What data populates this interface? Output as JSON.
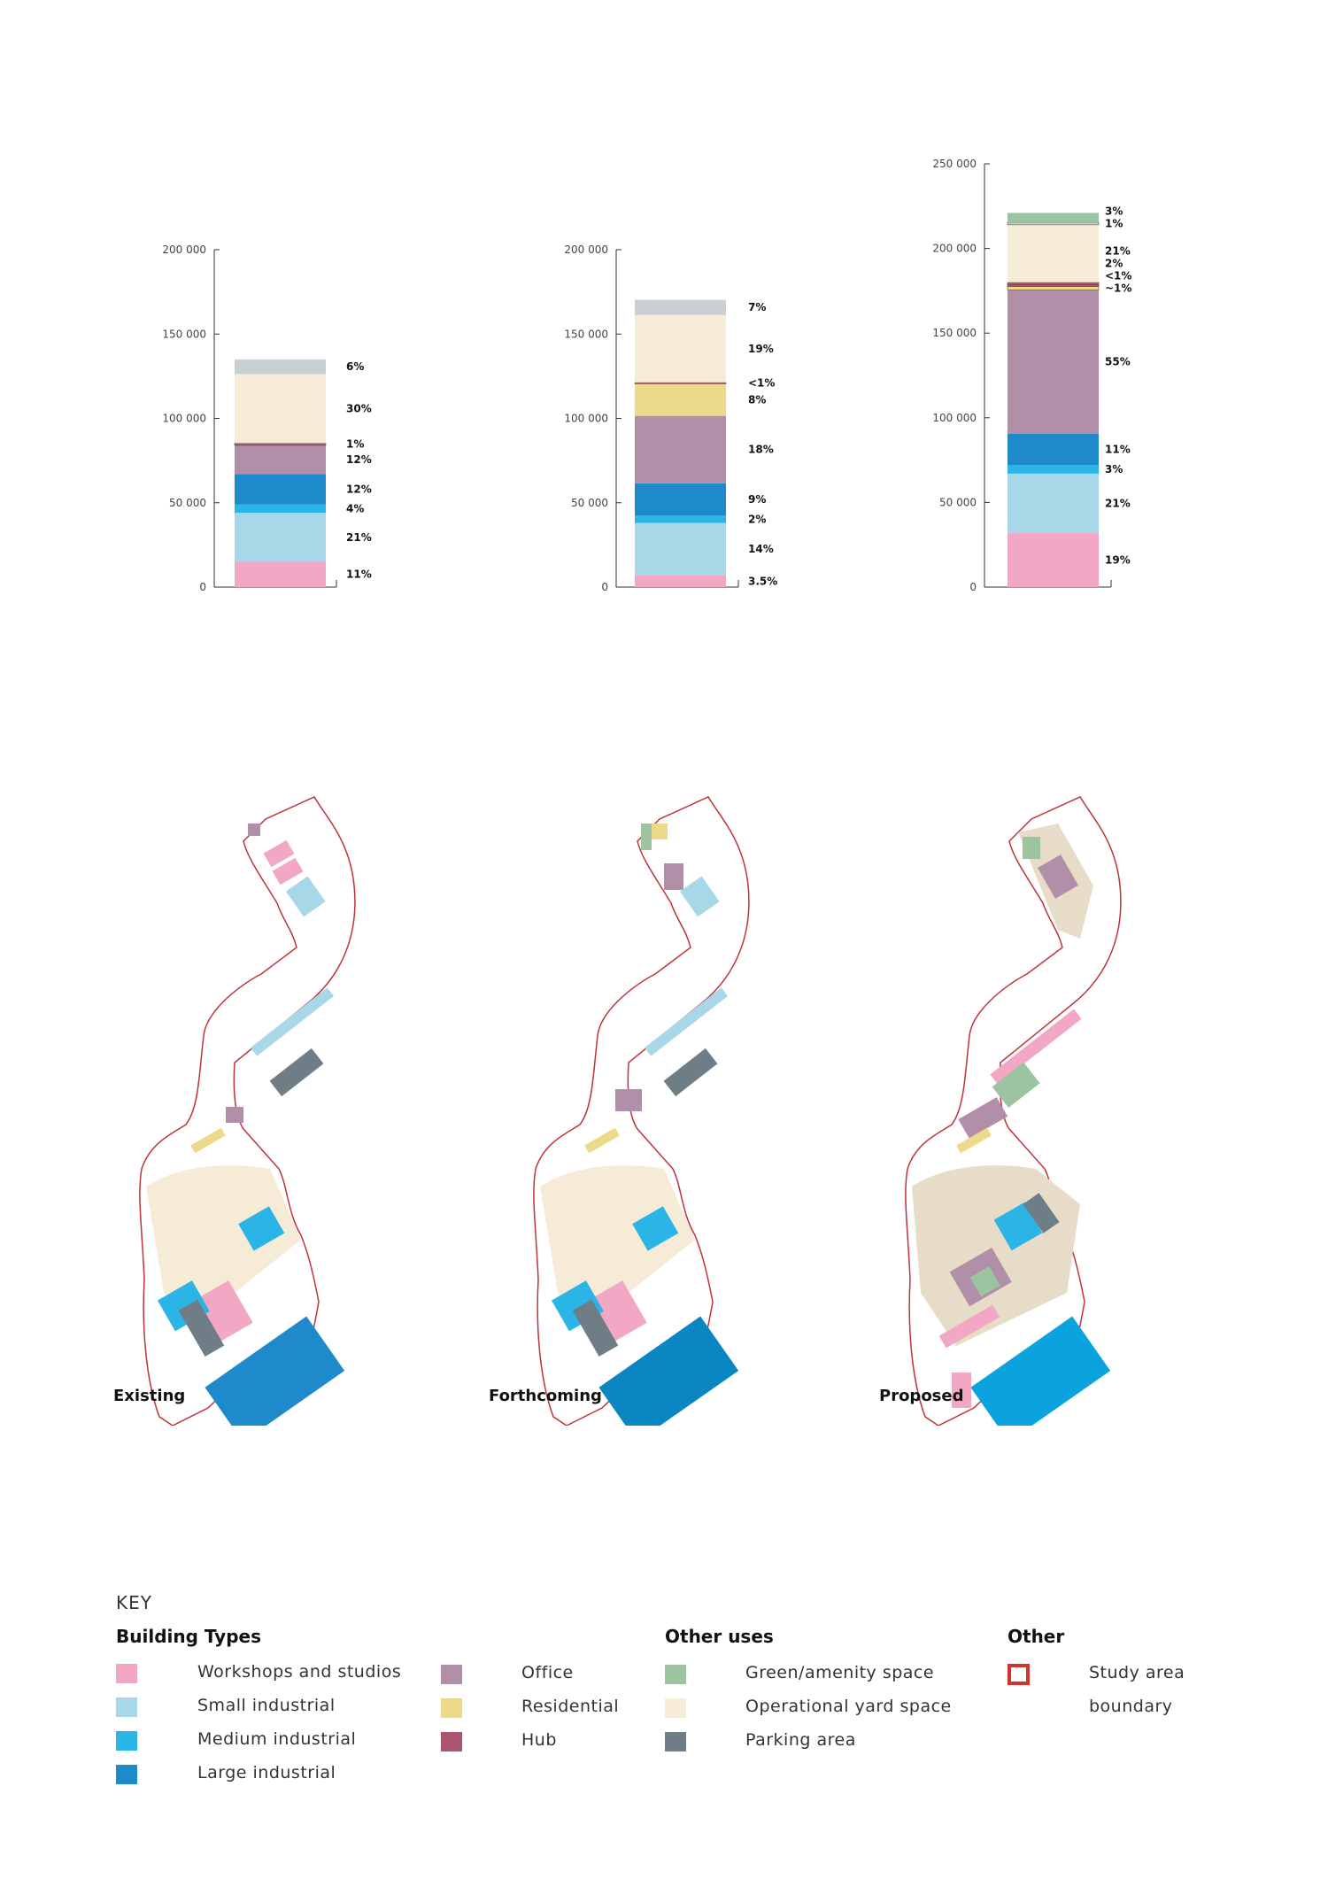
{
  "colors": {
    "workshops": "#f2a7c4",
    "small_industrial": "#a8d8e8",
    "medium_industrial": "#2bb5e6",
    "large_industrial": "#1f8acb",
    "office": "#b28fa8",
    "residential": "#ecd98a",
    "hub": "#a9556e",
    "green": "#9cc4a0",
    "operational_yard": "#f6ebd6",
    "parking": "#6e7d86",
    "grey_top": "#c9d0d4",
    "boundary": "#c0323a"
  },
  "chart_data": [
    {
      "type": "bar",
      "title": "",
      "ylim": [
        0,
        200000
      ],
      "ytick_labels": [
        "0",
        "50 000",
        "100 000",
        "150 000",
        "200 000"
      ],
      "series": [
        {
          "key": "workshops",
          "value": 15000,
          "label": "11%"
        },
        {
          "key": "small_industrial",
          "value": 29000,
          "label": "21%"
        },
        {
          "key": "medium_industrial",
          "value": 5000,
          "label": "4%"
        },
        {
          "key": "large_industrial",
          "value": 18000,
          "label": "12%"
        },
        {
          "key": "office",
          "value": 17000,
          "label": "12%"
        },
        {
          "key": "hub",
          "value": 1300,
          "label": "1%"
        },
        {
          "key": "operational_yard",
          "value": 41000,
          "label": "30%"
        },
        {
          "key": "grey_top",
          "value": 8700,
          "label": "6%"
        }
      ]
    },
    {
      "type": "bar",
      "title": "",
      "ylim": [
        0,
        200000
      ],
      "ytick_labels": [
        "0",
        "50 000",
        "100 000",
        "150 000",
        "200 000"
      ],
      "series": [
        {
          "key": "workshops",
          "value": 7000,
          "label": "3.5%"
        },
        {
          "key": "small_industrial",
          "value": 31000,
          "label": "14%"
        },
        {
          "key": "medium_industrial",
          "value": 4500,
          "label": "2%"
        },
        {
          "key": "large_industrial",
          "value": 19000,
          "label": "9%"
        },
        {
          "key": "office",
          "value": 40000,
          "label": "18%"
        },
        {
          "key": "residential",
          "value": 19000,
          "label": "8%"
        },
        {
          "key": "hub",
          "value": 800,
          "label": "<1%"
        },
        {
          "key": "operational_yard",
          "value": 40000,
          "label": "19%"
        },
        {
          "key": "grey_top",
          "value": 9000,
          "label": "7%"
        }
      ]
    },
    {
      "type": "bar",
      "title": "",
      "ylim": [
        0,
        250000
      ],
      "ytick_labels": [
        "0",
        "50 000",
        "100 000",
        "150 000",
        "200 000",
        "250 000"
      ],
      "series": [
        {
          "key": "workshops",
          "value": 32000,
          "label": "19%"
        },
        {
          "key": "small_industrial",
          "value": 35000,
          "label": "21%"
        },
        {
          "key": "medium_industrial",
          "value": 5000,
          "label": "3%"
        },
        {
          "key": "large_industrial",
          "value": 18500,
          "label": "11%"
        },
        {
          "key": "office",
          "value": 85000,
          "label": "55%"
        },
        {
          "key": "residential",
          "value": 2000,
          "label": "~1%"
        },
        {
          "key": "hub",
          "value": 1000,
          "label": "<1%"
        },
        {
          "key": "hub",
          "value": 1500,
          "label": "2%"
        },
        {
          "key": "operational_yard",
          "value": 34000,
          "label": "21%"
        },
        {
          "key": "grey_top",
          "value": 1500,
          "label": "1%"
        },
        {
          "key": "green",
          "value": 5500,
          "label": "3%"
        }
      ]
    }
  ],
  "maps": {
    "existing_label": "Existing",
    "forthcoming_label": "Forthcoming",
    "proposed_label": "Proposed"
  },
  "key": {
    "title": "KEY",
    "building_types_title": "Building Types",
    "other_uses_title": "Other uses",
    "other_title": "Other",
    "workshops": "Workshops and studios",
    "small_industrial": "Small industrial",
    "medium_industrial": "Medium industrial",
    "large_industrial": "Large industrial",
    "office": "Office",
    "residential": "Residential",
    "hub": "Hub",
    "green": "Green/amenity space",
    "operational_yard": "Operational yard space",
    "parking": "Parking area",
    "study_area_line1": "Study area",
    "study_area_line2": "boundary"
  }
}
